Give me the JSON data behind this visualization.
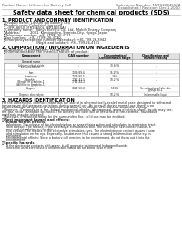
{
  "bg_color": "#ffffff",
  "header_left": "Product Name: Lithium Ion Battery Cell",
  "header_right_line1": "Substance Number: MZFS2004510A",
  "header_right_line2": "Established / Revision: Dec.1.2010",
  "main_title": "Safety data sheet for chemical products (SDS)",
  "section1_title": "1. PRODUCT AND COMPANY IDENTIFICATION",
  "section1_lines": [
    "・Product name: Lithium Ion Battery Cell",
    "・Product code: Cylindrical-type cell",
    "    (IFR18650, IFR18650L, IFR18650A)",
    "・Company name:   Sanyo Electric Co., Ltd.  Mobile Energy Company",
    "・Address:          2001  Kamiyashiro, Sumoto-City, Hyogo, Japan",
    "・Telephone number:  +81-(799)-26-4111",
    "・Fax number:   +81-(799)-26-4120",
    "・Emergency telephone number (Weekday): +81-799-26-3942",
    "                                (Night and holiday): +81-799-26-4101"
  ],
  "section2_title": "2. COMPOSITION / INFORMATION ON INGREDIENTS",
  "section2_sub": "・Substance or preparation: Preparation",
  "section2_sub2": "・Information about the chemical nature of product:",
  "table_col1_header": "General name",
  "table_rows": [
    [
      "Lithium cobalt oxide",
      "-",
      "30-60%",
      "-"
    ],
    [
      "(LiMn-Co-Ni-O2)",
      "",
      "",
      ""
    ],
    [
      "Iron",
      "7439-89-6",
      "15-25%",
      "-"
    ],
    [
      "Aluminum",
      "7429-90-5",
      "2-6%",
      "-"
    ],
    [
      "Graphite",
      "7782-42-5",
      "10-25%",
      "-"
    ],
    [
      "(Binder in graphite-1)",
      "7782-44-2",
      "",
      ""
    ],
    [
      "(All filler in graphite-1)",
      "",
      "",
      ""
    ],
    [
      "Copper",
      "7440-50-8",
      "5-15%",
      "Sensitization of the skin"
    ],
    [
      "",
      "",
      "",
      "group No.2"
    ],
    [
      "Organic electrolyte",
      "-",
      "10-20%",
      "Inflammable liquid"
    ]
  ],
  "section3_title": "3. HAZARDS IDENTIFICATION",
  "section3_body": [
    "For the battery cell, chemical materials are stored in a hermetically-sealed metal case, designed to withstand",
    "temperature and pressure-variations during normal use. As a result, during normal use, there is no",
    "physical danger of ignition or explosion and there is no danger of hazardous materials leakage.",
    "  However, if exposed to a fire, added mechanical shocks, decomposed, when electrical-short-circuity may use,",
    "the gas inside cannot be operated. The battery cell case will be breached at fire-extreme, hazardous",
    "materials may be released.",
    "  Moreover, if heated strongly by the surrounding fire, solid gas may be emitted."
  ],
  "section3_bullet1": "・Most important hazard and effects:",
  "section3_human": "Human health effects:",
  "section3_human_lines": [
    "  Inhalation: The release of the electrolyte has an anaesthesia action and stimulates in respiratory tract.",
    "  Skin contact: The release of the electrolyte stimulates a skin. The electrolyte skin contact causes a",
    "  sore and stimulation on the skin.",
    "  Eye contact: The release of the electrolyte stimulates eyes. The electrolyte eye contact causes a sore",
    "  and stimulation on the eye. Especially, a substance that causes a strong inflammation of the eye is",
    "  contained.",
    "  Environmental effects: Since a battery cell remains in the environment, do not throw out it into the",
    "  environment."
  ],
  "section3_specific": "・Specific hazards:",
  "section3_specific_lines": [
    "  If the electrolyte contacts with water, it will generate detrimental hydrogen fluoride.",
    "  Since the used electrolyte is inflammable liquid, do not bring close to fire."
  ]
}
